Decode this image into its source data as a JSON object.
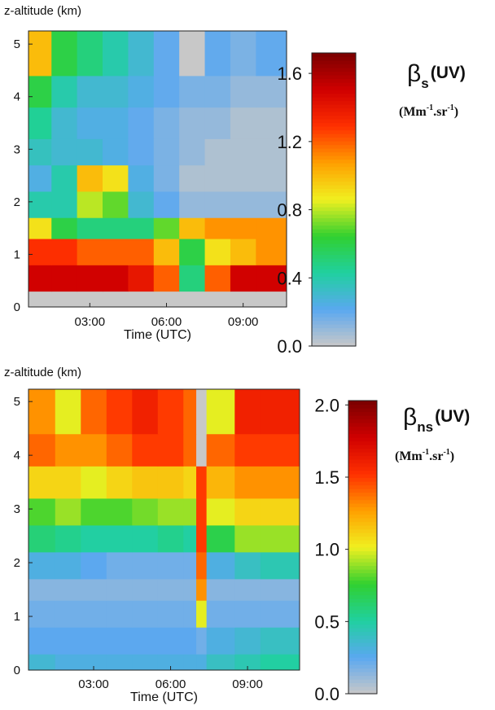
{
  "chart_data": [
    {
      "type": "heatmap",
      "ylabel": "z-altitude (km)",
      "xlabel": "Time (UTC)",
      "xlim": [
        0.6,
        10.7
      ],
      "ylim": [
        0,
        5.25
      ],
      "xticks": [
        {
          "value": 3,
          "label": "03:00"
        },
        {
          "value": 6,
          "label": "06:00"
        },
        {
          "value": 9,
          "label": "09:00"
        }
      ],
      "yticks": [
        0,
        1,
        2,
        3,
        4,
        5
      ],
      "x_edges": [
        0.6,
        1.5,
        2.5,
        3.5,
        4.5,
        5.5,
        6.5,
        7.5,
        8.5,
        9.5,
        10.7
      ],
      "y_edges": [
        0,
        0.3,
        0.8,
        1.3,
        1.7,
        2.2,
        2.7,
        3.2,
        3.8,
        4.4,
        5.25
      ],
      "values": [
        [
          0,
          0,
          0,
          0,
          0,
          0,
          0,
          0,
          0,
          0
        ],
        [
          1.5,
          1.5,
          1.5,
          1.5,
          1.4,
          1.2,
          0.5,
          1.2,
          1.5,
          1.5
        ],
        [
          1.3,
          1.3,
          1.2,
          1.2,
          1.2,
          1.0,
          0.6,
          0.9,
          1.0,
          1.1
        ],
        [
          0.9,
          0.6,
          0.5,
          0.5,
          0.5,
          0.7,
          1.0,
          1.1,
          1.1,
          1.1
        ],
        [
          0.4,
          0.4,
          0.8,
          0.7,
          0.3,
          0.2,
          0.1,
          0.1,
          0.1,
          0.1
        ],
        [
          0.25,
          0.4,
          1.0,
          0.9,
          0.25,
          0.15,
          0.05,
          0.05,
          0.05,
          0.05
        ],
        [
          0.35,
          0.3,
          0.3,
          0.25,
          0.2,
          0.15,
          0.1,
          0.05,
          0.05,
          0.05
        ],
        [
          0.45,
          0.3,
          0.25,
          0.25,
          0.2,
          0.15,
          0.1,
          0.1,
          0.05,
          0.05
        ],
        [
          0.6,
          0.4,
          0.3,
          0.3,
          0.25,
          0.2,
          0.15,
          0.15,
          0.1,
          0.1
        ],
        [
          1.0,
          0.6,
          0.5,
          0.4,
          0.3,
          0.2,
          0,
          0.2,
          0.15,
          0.2
        ]
      ],
      "colorbar": {
        "lim": [
          0,
          1.72
        ],
        "ticks": [
          {
            "value": 0,
            "label": "0.0"
          },
          0.4,
          0.8,
          1.2,
          1.6
        ],
        "colormap": [
          "#c8c8c8",
          "#5aa8f0",
          "#20d0a0",
          "#30d030",
          "#f0f020",
          "#ffa000",
          "#ff3000",
          "#d00000",
          "#7a0000"
        ],
        "symbol": "β",
        "subscript": "s",
        "text": "(UV)",
        "units": [
          "(Mm",
          "-1",
          ".sr",
          "-1",
          ")"
        ]
      }
    },
    {
      "type": "heatmap",
      "ylabel": "z-altitude (km)",
      "xlabel": "Time (UTC)",
      "xlim": [
        0.46,
        11.03
      ],
      "ylim": [
        0,
        5.23
      ],
      "xticks": [
        {
          "value": 3,
          "label": "03:00"
        },
        {
          "value": 6,
          "label": "06:00"
        },
        {
          "value": 9,
          "label": "09:00"
        }
      ],
      "yticks": [
        0,
        1,
        2,
        3,
        4,
        5
      ],
      "x_edges": [
        0.46,
        1.5,
        2.5,
        3.5,
        4.5,
        5.5,
        6.5,
        7.0,
        7.4,
        8.5,
        9.5,
        11.03
      ],
      "y_edges": [
        0,
        0.3,
        0.8,
        1.3,
        1.7,
        2.2,
        2.7,
        3.2,
        3.8,
        4.4,
        5.23
      ],
      "values": [
        [
          0.35,
          0.3,
          0.3,
          0.3,
          0.3,
          0.3,
          0.3,
          0.3,
          0.4,
          0.45,
          0.5
        ],
        [
          0.25,
          0.25,
          0.25,
          0.25,
          0.25,
          0.25,
          0.25,
          0.2,
          0.3,
          0.35,
          0.4
        ],
        [
          0.2,
          0.2,
          0.2,
          0.2,
          0.2,
          0.2,
          0.2,
          1.0,
          0.2,
          0.2,
          0.2
        ],
        [
          0.15,
          0.15,
          0.15,
          0.15,
          0.15,
          0.15,
          0.15,
          1.3,
          0.15,
          0.15,
          0.15
        ],
        [
          0.3,
          0.3,
          0.25,
          0.2,
          0.2,
          0.2,
          0.2,
          1.4,
          0.3,
          0.4,
          0.45
        ],
        [
          0.6,
          0.55,
          0.5,
          0.5,
          0.5,
          0.55,
          0.5,
          1.5,
          0.7,
          0.9,
          0.9
        ],
        [
          0.8,
          0.9,
          0.8,
          0.8,
          0.85,
          0.9,
          0.9,
          1.5,
          1.0,
          1.1,
          1.1
        ],
        [
          1.1,
          1.1,
          1.0,
          1.1,
          1.15,
          1.15,
          1.1,
          1.5,
          1.2,
          1.3,
          1.3
        ],
        [
          1.4,
          1.3,
          1.3,
          1.4,
          1.5,
          1.5,
          1.4,
          0,
          1.4,
          1.5,
          1.5
        ],
        [
          1.3,
          1.0,
          1.4,
          1.5,
          1.6,
          1.5,
          1.4,
          0,
          1.0,
          1.6,
          1.6
        ]
      ],
      "colorbar": {
        "lim": [
          0,
          2.03
        ],
        "ticks": [
          {
            "value": 0,
            "label": "0.0"
          },
          0.5,
          {
            "value": 1,
            "label": "1.0"
          },
          1.5,
          {
            "value": 2,
            "label": "2.0"
          }
        ],
        "colormap": [
          "#c8c8c8",
          "#5aa8f0",
          "#20d0a0",
          "#30d030",
          "#f0f020",
          "#ffa000",
          "#ff3000",
          "#d00000",
          "#7a0000"
        ],
        "symbol": "β",
        "subscript": "ns",
        "text": "(UV)",
        "units": [
          "(Mm",
          "-1",
          ".sr",
          "-1",
          ")"
        ]
      }
    }
  ]
}
